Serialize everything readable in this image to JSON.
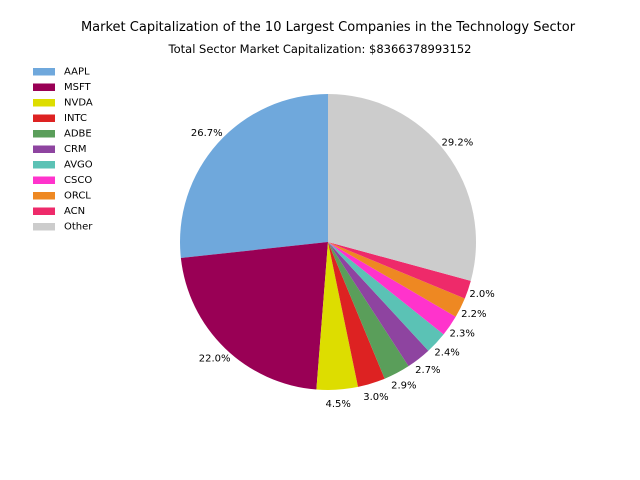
{
  "chart_data": {
    "type": "pie",
    "title": "Market Capitalization of the 10 Largest Companies in the Technology Sector",
    "subtitle": "Total Sector Market Capitalization: $8366378993152",
    "categories": [
      "AAPL",
      "MSFT",
      "NVDA",
      "INTC",
      "ADBE",
      "CRM",
      "AVGO",
      "CSCO",
      "ORCL",
      "ACN",
      "Other"
    ],
    "values": [
      26.7,
      22.0,
      4.5,
      3.0,
      2.9,
      2.7,
      2.4,
      2.3,
      2.2,
      2.0,
      29.2
    ],
    "value_labels": [
      "26.7%",
      "22.0%",
      "4.5%",
      "3.0%",
      "2.9%",
      "2.7%",
      "2.4%",
      "2.3%",
      "2.2%",
      "2.0%",
      "29.2%"
    ],
    "colors": [
      "#6fa8dc",
      "#990055",
      "#dddd00",
      "#dd2222",
      "#5a9e5a",
      "#8e44a0",
      "#5bc2b5",
      "#ff33cc",
      "#ee8822",
      "#ee2a6a",
      "#cccccc"
    ],
    "start_angle_deg": 90,
    "direction": "counterclockwise",
    "legend_position": "upper-left"
  }
}
